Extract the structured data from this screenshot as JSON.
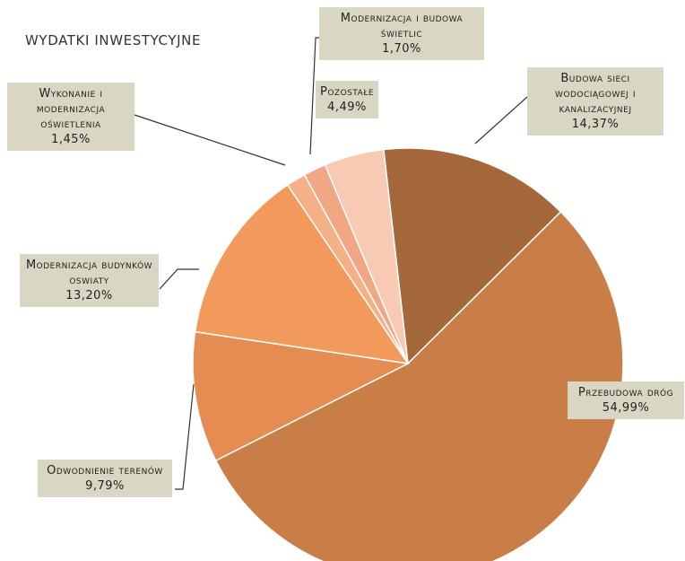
{
  "chart_data": {
    "type": "pie",
    "title": "WYDATKI INWESTYCYJNE",
    "categories": [
      "Budowa sieci wodociągowej i kanalizacyjnej",
      "Przebudowa dróg",
      "Odwodnienie terenów",
      "Modernizacja budynków oswiaty",
      "Wykonanie i modernizacja oświetlenia",
      "Modernizacja i budowa świetlic",
      "Pozostałe"
    ],
    "values": [
      14.37,
      54.99,
      9.79,
      13.2,
      1.45,
      1.7,
      4.49
    ],
    "value_labels": [
      "14,37%",
      "54,99%",
      "9,79%",
      "13,20%",
      "1,45%",
      "1,70%",
      "4,49%"
    ],
    "colors": [
      "#a4683b",
      "#c97d47",
      "#e48c51",
      "#f19a5c",
      "#f4b086",
      "#f2a784",
      "#f8c9b3"
    ]
  }
}
